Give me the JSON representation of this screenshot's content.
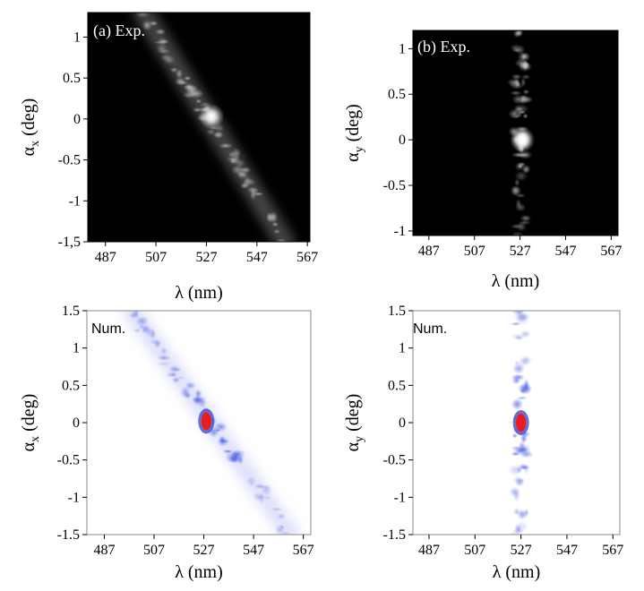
{
  "chart_data": [
    {
      "type": "heatmap",
      "panel_label": "(a) Exp.",
      "colormap": "grayscale",
      "xlabel": "λ (nm)",
      "ylabel": {
        "symbol": "α",
        "sub": "x",
        "rest": " (deg)"
      },
      "xlim": [
        480,
        568
      ],
      "ylim": [
        -1.5,
        1.3
      ],
      "xticks": [
        487,
        507,
        527,
        547,
        567
      ],
      "xtick_labels": [
        "487",
        "507",
        "527",
        "547",
        "567"
      ],
      "yticks": [
        -1.5,
        -1,
        -0.5,
        0,
        0.5,
        1
      ],
      "ytick_labels": [
        "-1,5",
        "-1",
        "-0.5",
        "0",
        "0.5",
        "1"
      ],
      "feature": {
        "kind": "diagonal band",
        "line": [
          [
            502,
            1.3
          ],
          [
            558,
            -1.5
          ]
        ],
        "hotspot": {
          "x": 529,
          "y": 0.03,
          "peak": 1.0
        }
      }
    },
    {
      "type": "heatmap",
      "panel_label": "(b) Exp.",
      "colormap": "grayscale",
      "xlabel": "λ (nm)",
      "ylabel": {
        "symbol": "α",
        "sub": "y",
        "rest": " (deg)"
      },
      "xlim": [
        480,
        570
      ],
      "ylim": [
        -1.05,
        1.2
      ],
      "xticks": [
        487,
        507,
        527,
        547,
        567
      ],
      "xtick_labels": [
        "487",
        "507",
        "527",
        "547",
        "567"
      ],
      "yticks": [
        -1,
        -0.5,
        0,
        0.5,
        1
      ],
      "ytick_labels": [
        "-1",
        "-0.5",
        "0",
        "0.5",
        "1"
      ],
      "feature": {
        "kind": "vertical band",
        "line": [
          [
            527,
            1.2
          ],
          [
            527,
            -1.05
          ]
        ],
        "hotspot": {
          "x": 528,
          "y": 0.0,
          "peak": 1.0
        }
      }
    },
    {
      "type": "heatmap",
      "panel_label": "Num.",
      "colormap": "white-blue-red",
      "xlabel": "λ (nm)",
      "ylabel": {
        "symbol": "α",
        "sub": "x",
        "rest": " (deg)"
      },
      "xlim": [
        480,
        570
      ],
      "ylim": [
        -1.5,
        1.5
      ],
      "xticks": [
        487,
        507,
        527,
        547,
        567
      ],
      "xtick_labels": [
        "487",
        "507",
        "527",
        "547",
        "567"
      ],
      "yticks": [
        -1.5,
        -1,
        -0.5,
        0,
        0.5,
        1,
        1.5
      ],
      "ytick_labels": [
        "-1.5",
        "-1",
        "-0.5",
        "0",
        "0.5",
        "1",
        "1.5"
      ],
      "feature": {
        "kind": "diagonal band",
        "line": [
          [
            498,
            1.5
          ],
          [
            562,
            -1.5
          ]
        ],
        "hotspot": {
          "x": 528,
          "y": 0.02,
          "peak": 1.0
        }
      }
    },
    {
      "type": "heatmap",
      "panel_label": "Num.",
      "colormap": "white-blue-red",
      "xlabel": "λ (nm)",
      "ylabel": {
        "symbol": "α",
        "sub": "y",
        "rest": " (deg)"
      },
      "xlim": [
        480,
        570
      ],
      "ylim": [
        -1.5,
        1.5
      ],
      "xticks": [
        487,
        507,
        527,
        547,
        567
      ],
      "xtick_labels": [
        "487",
        "507",
        "527",
        "547",
        "567"
      ],
      "yticks": [
        -1.5,
        -1,
        -0.5,
        0,
        0.5,
        1,
        1.5
      ],
      "ytick_labels": [
        "-1.5",
        "-1",
        "-0.5",
        "0",
        "0.5",
        "1",
        "1.5"
      ],
      "feature": {
        "kind": "vertical band",
        "line": [
          [
            527,
            1.5
          ],
          [
            527,
            -1.5
          ]
        ],
        "hotspot": {
          "x": 527,
          "y": 0.0,
          "peak": 1.0
        }
      }
    }
  ]
}
